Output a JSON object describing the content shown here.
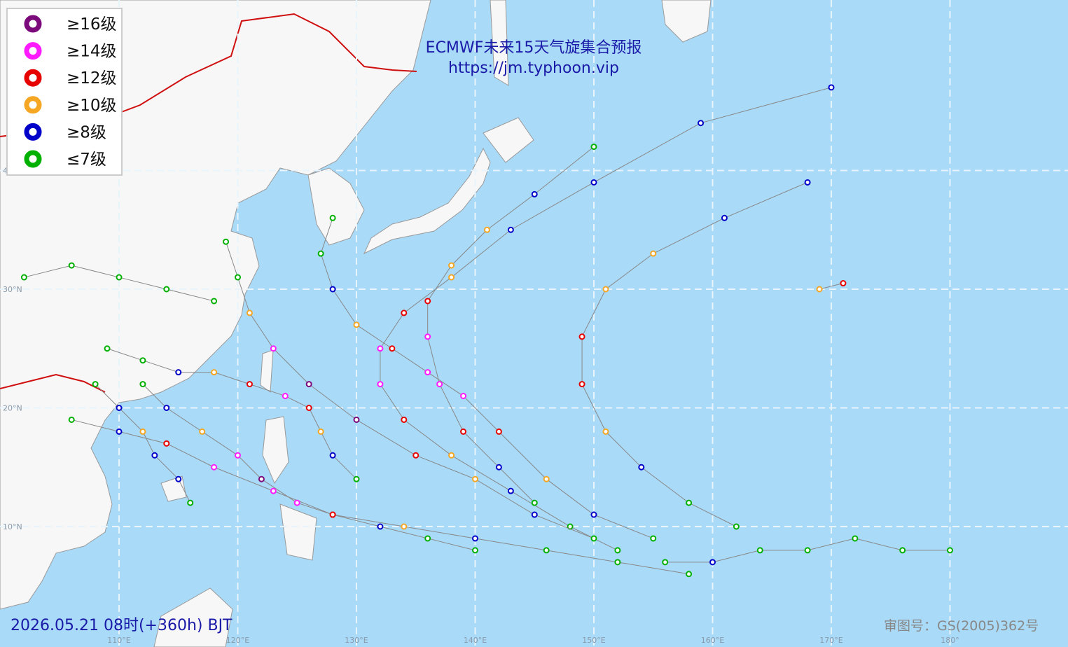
{
  "map": {
    "title": "ECMWF未来15天气旋集合预报",
    "url": "https://jm.typhoon.vip",
    "timestamp": "2026.05.21 08时(+360h) BJT",
    "approval": "审图号：GS(2005)362号",
    "legend": [
      {
        "label": "≥16级",
        "color": "#7b0a7b"
      },
      {
        "label": "≥14级",
        "color": "#ff1aff"
      },
      {
        "label": "≥12级",
        "color": "#e60000"
      },
      {
        "label": "≥10级",
        "color": "#f5a623"
      },
      {
        "label": "≥8级",
        "color": "#0000c8"
      },
      {
        "label": "≤7级",
        "color": "#00b000"
      }
    ],
    "lon_ticks": [
      {
        "value": 110,
        "label": "110°E"
      },
      {
        "value": 120,
        "label": "120°E"
      },
      {
        "value": 130,
        "label": "130°E"
      },
      {
        "value": 140,
        "label": "140°E"
      },
      {
        "value": 150,
        "label": "150°E"
      },
      {
        "value": 160,
        "label": "160°E"
      },
      {
        "value": 170,
        "label": "170°E"
      },
      {
        "value": 180,
        "label": "180°"
      }
    ],
    "lat_ticks": [
      {
        "value": 10,
        "label": "10°N"
      },
      {
        "value": 20,
        "label": "20°N"
      },
      {
        "value": 30,
        "label": "30°N"
      },
      {
        "value": 40,
        "label": "40°N"
      }
    ],
    "tracks": [
      {
        "lons": [
          152,
          148,
          143,
          138,
          134,
          132,
          132,
          134,
          138,
          143,
          150,
          159,
          170
        ],
        "lats": [
          8,
          10,
          13,
          16,
          19,
          22,
          25,
          28,
          31,
          35,
          39,
          44,
          47
        ],
        "levels": [
          5,
          5,
          4,
          3,
          2,
          1,
          1,
          2,
          3,
          4,
          4,
          4,
          4
        ]
      },
      {
        "lons": [
          158,
          152,
          146,
          140,
          134,
          128,
          123,
          118,
          114,
          110,
          106
        ],
        "lats": [
          6,
          7,
          8,
          9,
          10,
          11,
          13,
          15,
          17,
          18,
          19
        ],
        "levels": [
          5,
          5,
          5,
          4,
          3,
          2,
          1,
          1,
          2,
          4,
          5
        ]
      },
      {
        "lons": [
          150,
          145,
          140,
          135,
          130,
          126,
          123,
          121,
          120,
          119
        ],
        "lats": [
          9,
          11,
          14,
          16,
          19,
          22,
          25,
          28,
          31,
          34
        ],
        "levels": [
          5,
          4,
          3,
          2,
          0,
          0,
          1,
          3,
          5,
          5
        ]
      },
      {
        "lons": [
          180,
          176,
          172,
          168,
          164,
          160,
          156
        ],
        "lats": [
          8,
          8,
          9,
          8,
          8,
          7,
          7
        ],
        "levels": [
          5,
          5,
          5,
          5,
          5,
          4,
          5
        ]
      },
      {
        "lons": [
          145,
          142,
          139,
          137,
          136,
          136,
          138,
          141,
          145,
          150
        ],
        "lats": [
          12,
          15,
          18,
          22,
          26,
          29,
          32,
          35,
          38,
          42
        ],
        "levels": [
          5,
          4,
          2,
          1,
          1,
          2,
          3,
          3,
          4,
          5
        ]
      },
      {
        "lons": [
          116,
          115,
          113,
          112,
          110,
          108
        ],
        "lats": [
          12,
          14,
          16,
          18,
          20,
          22
        ],
        "levels": [
          5,
          4,
          4,
          3,
          4,
          5
        ]
      },
      {
        "lons": [
          140,
          136,
          132,
          128,
          125,
          122,
          120,
          117,
          114,
          112
        ],
        "lats": [
          8,
          9,
          10,
          11,
          12,
          14,
          16,
          18,
          20,
          22
        ],
        "levels": [
          5,
          5,
          4,
          2,
          1,
          0,
          1,
          3,
          4,
          5
        ]
      },
      {
        "lons": [
          162,
          158,
          154,
          151,
          149,
          149,
          151,
          155,
          161,
          168
        ],
        "lats": [
          10,
          12,
          15,
          18,
          22,
          26,
          30,
          33,
          36,
          39
        ],
        "levels": [
          5,
          5,
          4,
          3,
          2,
          2,
          3,
          3,
          4,
          4
        ]
      },
      {
        "lons": [
          118,
          114,
          110,
          106,
          102
        ],
        "lats": [
          29,
          30,
          31,
          32,
          31
        ],
        "levels": [
          5,
          5,
          5,
          5,
          5
        ]
      },
      {
        "lons": [
          169,
          171
        ],
        "lats": [
          30,
          30.5
        ],
        "levels": [
          3,
          2
        ]
      },
      {
        "lons": [
          155,
          150,
          146,
          142,
          139,
          136,
          133,
          130,
          128,
          127,
          128
        ],
        "lats": [
          9,
          11,
          14,
          18,
          21,
          23,
          25,
          27,
          30,
          33,
          36
        ],
        "levels": [
          5,
          4,
          3,
          2,
          1,
          1,
          2,
          3,
          4,
          5,
          5
        ]
      },
      {
        "lons": [
          130,
          128,
          127,
          126,
          124,
          121,
          118,
          115,
          112,
          109
        ],
        "lats": [
          14,
          16,
          18,
          20,
          21,
          22,
          23,
          23,
          24,
          25
        ],
        "levels": [
          5,
          4,
          3,
          2,
          1,
          2,
          3,
          4,
          5,
          5
        ]
      }
    ]
  }
}
